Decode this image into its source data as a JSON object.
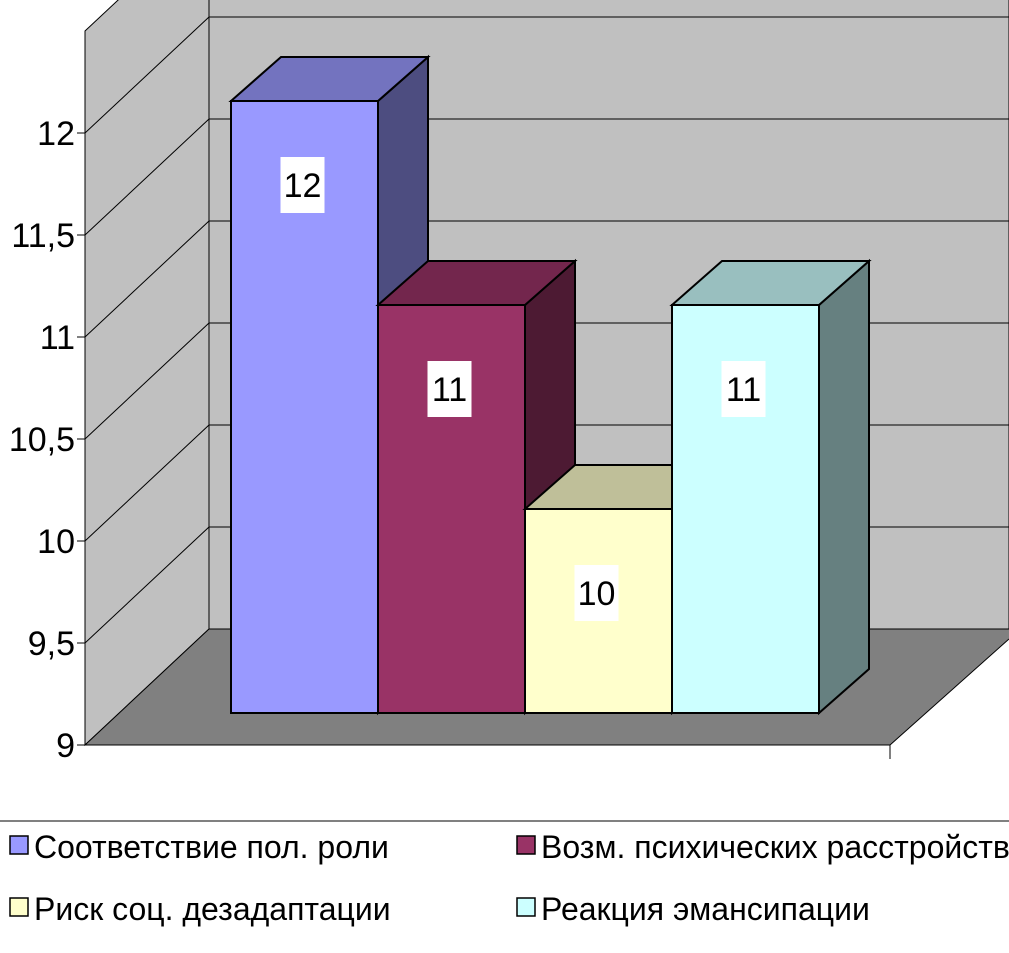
{
  "chart_data": {
    "type": "bar",
    "three_d": true,
    "categories": [
      "Соответствие пол. роли",
      "Возм. психических расстройств",
      "Риск соц. дезадаптации",
      "Реакция эмансипации"
    ],
    "series": [
      {
        "name": "Соответствие пол. роли",
        "value": 12,
        "label": "12",
        "color": "#9999ff"
      },
      {
        "name": "Возм. психических расстройств",
        "value": 11,
        "label": "11",
        "color": "#993366"
      },
      {
        "name": "Риск соц. дезадаптации",
        "value": 10,
        "label": "10",
        "color": "#ffffcc"
      },
      {
        "name": "Реакция эмансипации",
        "value": 11,
        "label": "11",
        "color": "#ccffff"
      }
    ],
    "legend_labels": [
      "Соответствие пол. роли",
      "Возм. психических расстройств",
      "Риск соц. дезадаптации",
      "Реакция эмансипации"
    ],
    "y_ticks": [
      9,
      9.5,
      10,
      10.5,
      11,
      11.5,
      12
    ],
    "y_tick_labels": [
      "9",
      "9,5",
      "10",
      "10,5",
      "11",
      "11,5",
      "12"
    ],
    "ylim": [
      9,
      12.5
    ],
    "grid": true,
    "legend_position": "bottom",
    "colors": {
      "wall": "#c0c0c0",
      "floor": "#808080",
      "gridline": "#000000"
    }
  }
}
